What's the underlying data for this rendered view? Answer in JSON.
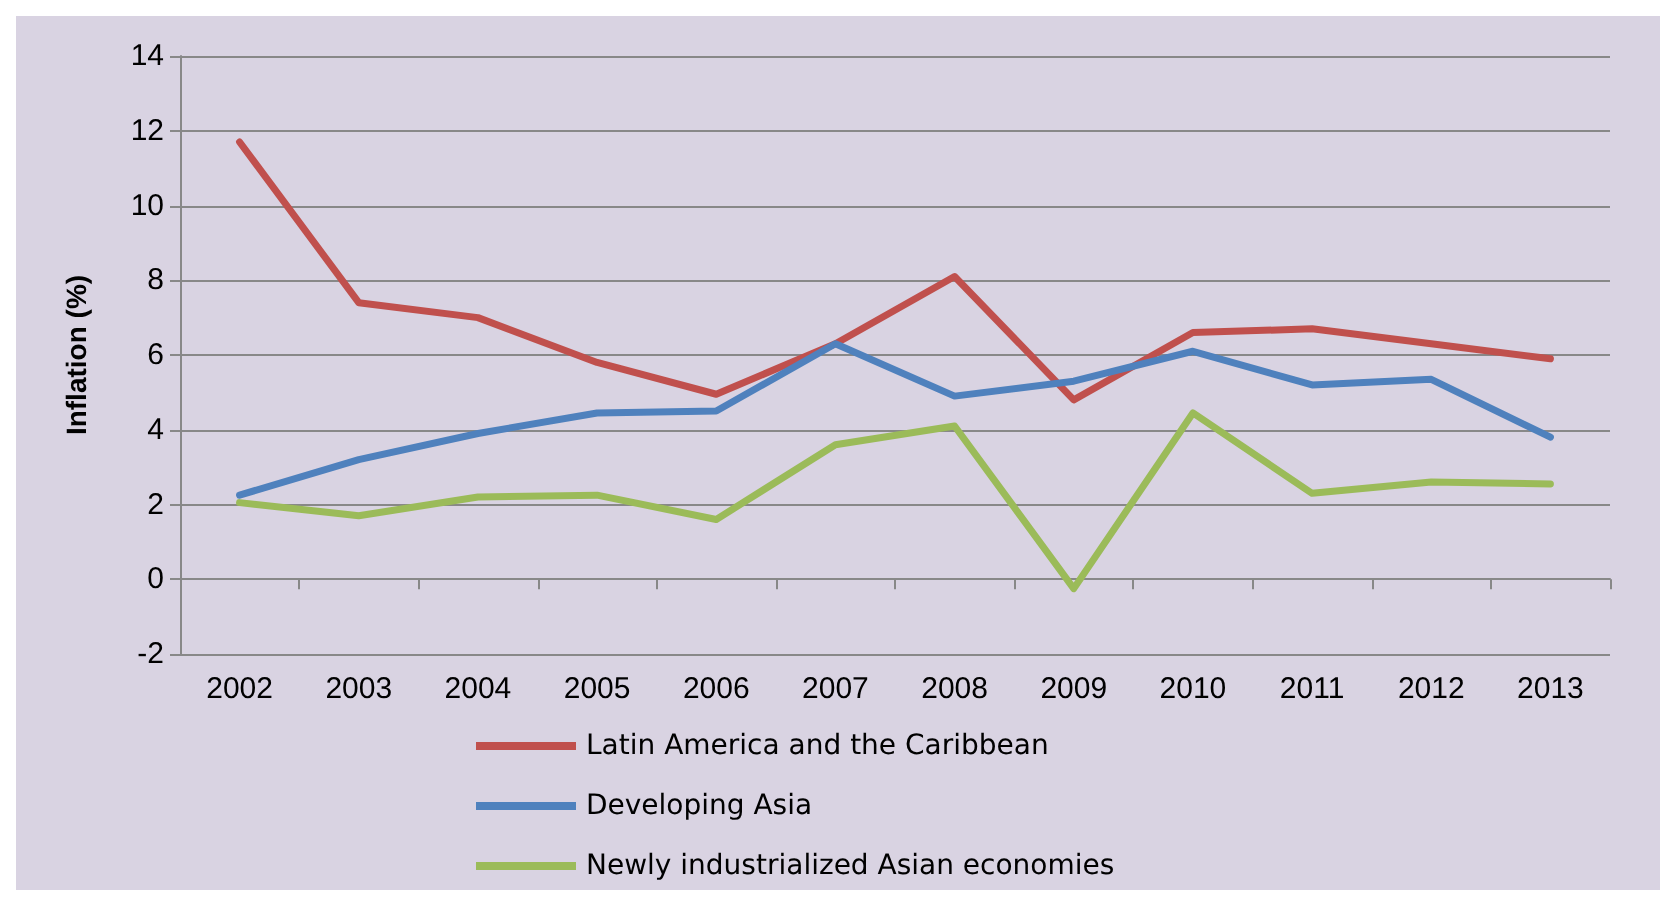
{
  "chart_data": {
    "type": "line",
    "ylabel": "Inflation (%)",
    "categories": [
      "2002",
      "2003",
      "2004",
      "2005",
      "2006",
      "2007",
      "2008",
      "2009",
      "2010",
      "2011",
      "2012",
      "2013"
    ],
    "series": [
      {
        "name": "Latin America and the Caribbean",
        "color": "#c0504d",
        "values": [
          11.7,
          7.4,
          7.0,
          5.8,
          4.95,
          6.3,
          8.1,
          4.8,
          6.6,
          6.7,
          6.3,
          5.9
        ]
      },
      {
        "name": "Developing Asia",
        "color": "#4f81bd",
        "values": [
          2.25,
          3.2,
          3.9,
          4.45,
          4.5,
          6.3,
          4.9,
          5.3,
          6.1,
          5.2,
          5.35,
          3.8
        ]
      },
      {
        "name": "Newly industrialized Asian economies",
        "color": "#9bbb59",
        "values": [
          2.05,
          1.7,
          2.2,
          2.25,
          1.6,
          3.6,
          4.1,
          -0.25,
          4.45,
          2.3,
          2.6,
          2.55
        ]
      }
    ],
    "ylim": [
      -2,
      14
    ],
    "yticks": [
      -2,
      0,
      2,
      4,
      6,
      8,
      10,
      12,
      14
    ],
    "grid": "y",
    "legend": "bottom",
    "marker": "none",
    "line_style": "solid"
  }
}
